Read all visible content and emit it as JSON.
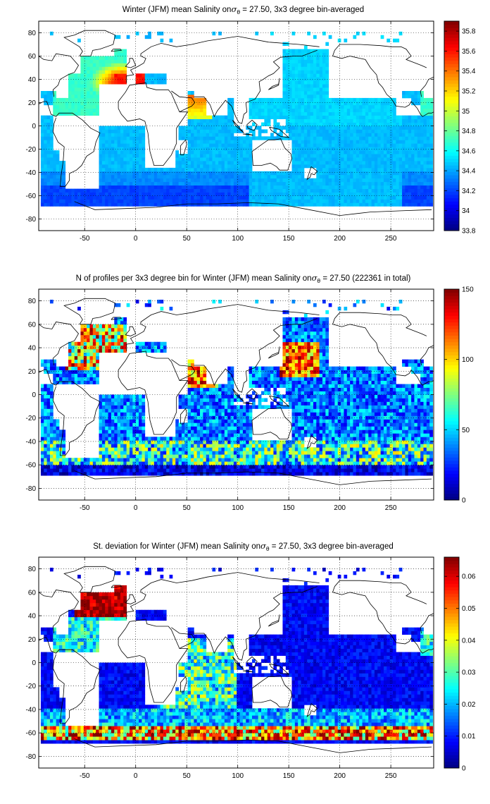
{
  "chart_data": [
    {
      "type": "heatmap",
      "title_parts": [
        "Winter (JFM) mean Salinity on",
        "σ",
        "θ",
        " = 27.50, 3x3 degree bin-averaged"
      ],
      "x_ticks": [
        "-50",
        "0",
        "50",
        "100",
        "150",
        "200",
        "250"
      ],
      "y_ticks": [
        "80",
        "60",
        "40",
        "20",
        "0",
        "-20",
        "-40",
        "-60",
        "-80"
      ],
      "xlim": [
        -95,
        292
      ],
      "ylim": [
        -90,
        90
      ],
      "grid": true,
      "colormap": "jet",
      "colorbar": {
        "range": [
          33.8,
          35.9
        ],
        "ticks": [
          "35.8",
          "35.6",
          "35.4",
          "35.2",
          "35",
          "34.8",
          "34.6",
          "34.4",
          "34.2",
          "34",
          "33.8"
        ]
      }
    },
    {
      "type": "heatmap",
      "title_parts": [
        "N of profiles per 3x3 degree bin for Winter (JFM) mean Salinity on",
        "σ",
        "θ",
        " = 27.50 (222361 in total)"
      ],
      "x_ticks": [
        "-50",
        "0",
        "50",
        "100",
        "150",
        "200",
        "250"
      ],
      "y_ticks": [
        "80",
        "60",
        "40",
        "20",
        "0",
        "-20",
        "-40",
        "-60",
        "-80"
      ],
      "xlim": [
        -95,
        292
      ],
      "ylim": [
        -90,
        90
      ],
      "grid": true,
      "colormap": "jet",
      "colorbar": {
        "range": [
          0,
          150
        ],
        "ticks": [
          "150",
          "100",
          "50",
          "0"
        ]
      }
    },
    {
      "type": "heatmap",
      "title_parts": [
        "St. deviation for Winter (JFM) mean Salinity on",
        "σ",
        "θ",
        " = 27.50, 3x3 degree bin-averaged"
      ],
      "x_ticks": [
        "-50",
        "0",
        "50",
        "100",
        "150",
        "200",
        "250"
      ],
      "y_ticks": [
        "80",
        "60",
        "40",
        "20",
        "0",
        "-20",
        "-40",
        "-60",
        "-80"
      ],
      "xlim": [
        -95,
        292
      ],
      "ylim": [
        -90,
        90
      ],
      "grid": true,
      "colormap": "jet",
      "colorbar": {
        "range": [
          0,
          0.066
        ],
        "ticks": [
          "0.06",
          "0.05",
          "0.04",
          "0.03",
          "0.02",
          "0.01",
          "0"
        ]
      }
    }
  ]
}
